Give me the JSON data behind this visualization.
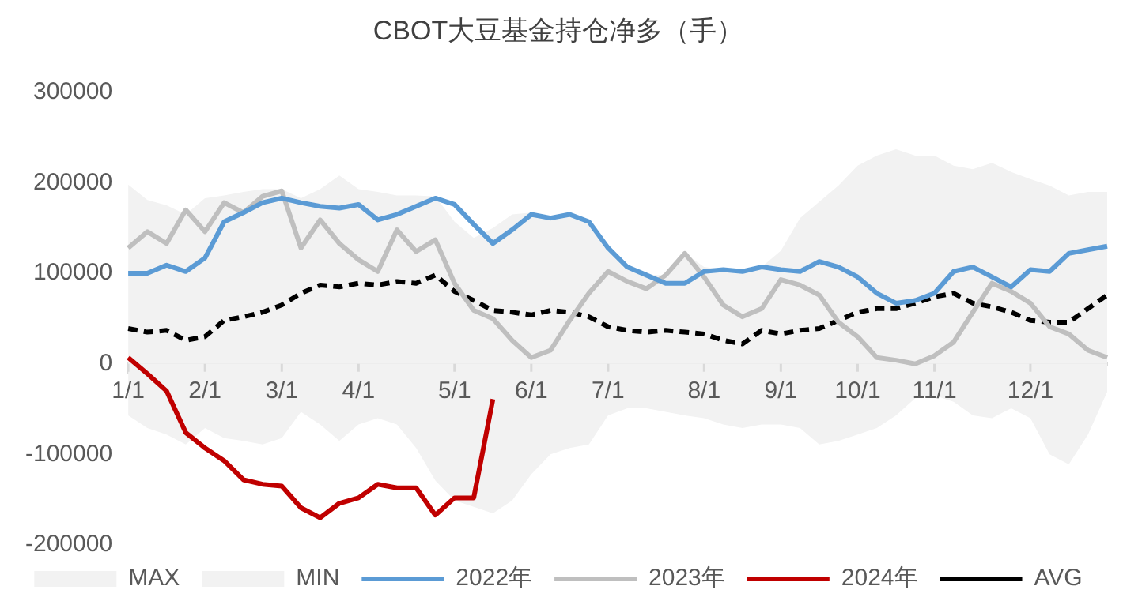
{
  "chart_data": {
    "type": "line",
    "title": "CBOT大豆基金持仓净多（手）",
    "categories": [
      "1/1",
      null,
      null,
      null,
      "2/1",
      null,
      null,
      null,
      "3/1",
      null,
      null,
      null,
      "4/1",
      null,
      null,
      null,
      null,
      "5/1",
      null,
      null,
      null,
      "6/1",
      null,
      null,
      null,
      "7/1",
      null,
      null,
      null,
      null,
      "8/1",
      null,
      null,
      null,
      "9/1",
      null,
      null,
      null,
      "10/1",
      null,
      null,
      null,
      "11/1",
      null,
      null,
      null,
      null,
      "12/1",
      null,
      null,
      null,
      null
    ],
    "ylim": [
      -200000,
      300000
    ],
    "yticks": [
      -200000,
      -100000,
      0,
      100000,
      200000,
      300000
    ],
    "grid": false,
    "legend": "bottom",
    "marker": "none",
    "series": [
      {
        "name": "MAX",
        "type": "area",
        "color": "#f2f2f2",
        "values": [
          198000,
          181000,
          175000,
          165000,
          183000,
          186000,
          190000,
          193000,
          193000,
          183000,
          193000,
          208000,
          193000,
          190000,
          186000,
          186000,
          185000,
          157000,
          139000,
          150000,
          165000,
          167000,
          161000,
          165000,
          157000,
          128000,
          107000,
          98000,
          98000,
          122000,
          107000,
          104000,
          102000,
          107000,
          125000,
          161000,
          179000,
          197000,
          219000,
          230000,
          237000,
          230000,
          230000,
          219000,
          215000,
          222000,
          212000,
          204000,
          197000,
          186000,
          190000,
          190000
        ]
      },
      {
        "name": "MIN",
        "type": "area",
        "color": "#f2f2f2",
        "values": [
          -57000,
          -71000,
          -78000,
          -89000,
          -71000,
          -82000,
          -85000,
          -89000,
          -82000,
          -53000,
          -67000,
          -85000,
          -67000,
          -60000,
          -67000,
          -93000,
          -129000,
          -151000,
          -158000,
          -165000,
          -151000,
          -122000,
          -100000,
          -93000,
          -89000,
          -57000,
          -49000,
          -49000,
          -53000,
          -57000,
          -60000,
          -67000,
          -71000,
          -67000,
          -67000,
          -71000,
          -89000,
          -85000,
          -78000,
          -71000,
          -57000,
          -38000,
          -35000,
          -42000,
          -57000,
          -60000,
          -49000,
          -60000,
          -100000,
          -111000,
          -78000,
          -31000
        ]
      },
      {
        "name": "2022年",
        "color": "#5b9bd5",
        "values": [
          100000,
          100000,
          109000,
          102000,
          117000,
          157000,
          167000,
          178000,
          183000,
          178000,
          174000,
          172000,
          176000,
          159000,
          165000,
          174000,
          183000,
          176000,
          154000,
          133000,
          148000,
          165000,
          161000,
          165000,
          157000,
          128000,
          107000,
          98000,
          89000,
          89000,
          102000,
          104000,
          102000,
          107000,
          104000,
          102000,
          113000,
          107000,
          96000,
          78000,
          67000,
          70000,
          78000,
          102000,
          107000,
          96000,
          85000,
          104000,
          102000,
          122000,
          126000,
          130000
        ]
      },
      {
        "name": "2023年",
        "color": "#bfbfbf",
        "values": [
          128000,
          146000,
          133000,
          170000,
          146000,
          178000,
          167000,
          185000,
          191000,
          128000,
          159000,
          133000,
          115000,
          102000,
          148000,
          124000,
          137000,
          89000,
          59000,
          50000,
          26000,
          7000,
          15000,
          48000,
          78000,
          102000,
          91000,
          83000,
          98000,
          122000,
          96000,
          65000,
          52000,
          61000,
          93000,
          87000,
          76000,
          46000,
          30000,
          7000,
          4000,
          0,
          9000,
          24000,
          57000,
          89000,
          80000,
          67000,
          41000,
          33000,
          15000,
          7000
        ]
      },
      {
        "name": "2024年",
        "color": "#c00000",
        "values": [
          7000,
          -11000,
          -30000,
          -76000,
          -93000,
          -107000,
          -128000,
          -133000,
          -135000,
          -159000,
          -170000,
          -154000,
          -148000,
          -133000,
          -137000,
          -137000,
          -167000,
          -148000,
          -148000,
          -39000,
          null,
          null,
          null,
          null,
          null,
          null,
          null,
          null,
          null,
          null,
          null,
          null,
          null,
          null,
          null,
          null,
          null,
          null,
          null,
          null,
          null,
          null,
          null,
          null,
          null,
          null,
          null,
          null,
          null,
          null,
          null,
          null
        ]
      },
      {
        "name": "AVG",
        "color": "#000000",
        "line_style": "dashed",
        "values": [
          39000,
          35000,
          37000,
          26000,
          30000,
          48000,
          52000,
          57000,
          65000,
          78000,
          87000,
          85000,
          89000,
          87000,
          91000,
          89000,
          98000,
          80000,
          70000,
          59000,
          57000,
          54000,
          59000,
          57000,
          52000,
          41000,
          37000,
          35000,
          37000,
          35000,
          33000,
          26000,
          22000,
          37000,
          33000,
          37000,
          39000,
          48000,
          57000,
          61000,
          61000,
          67000,
          74000,
          78000,
          67000,
          63000,
          57000,
          48000,
          46000,
          46000,
          61000,
          76000
        ]
      }
    ]
  }
}
